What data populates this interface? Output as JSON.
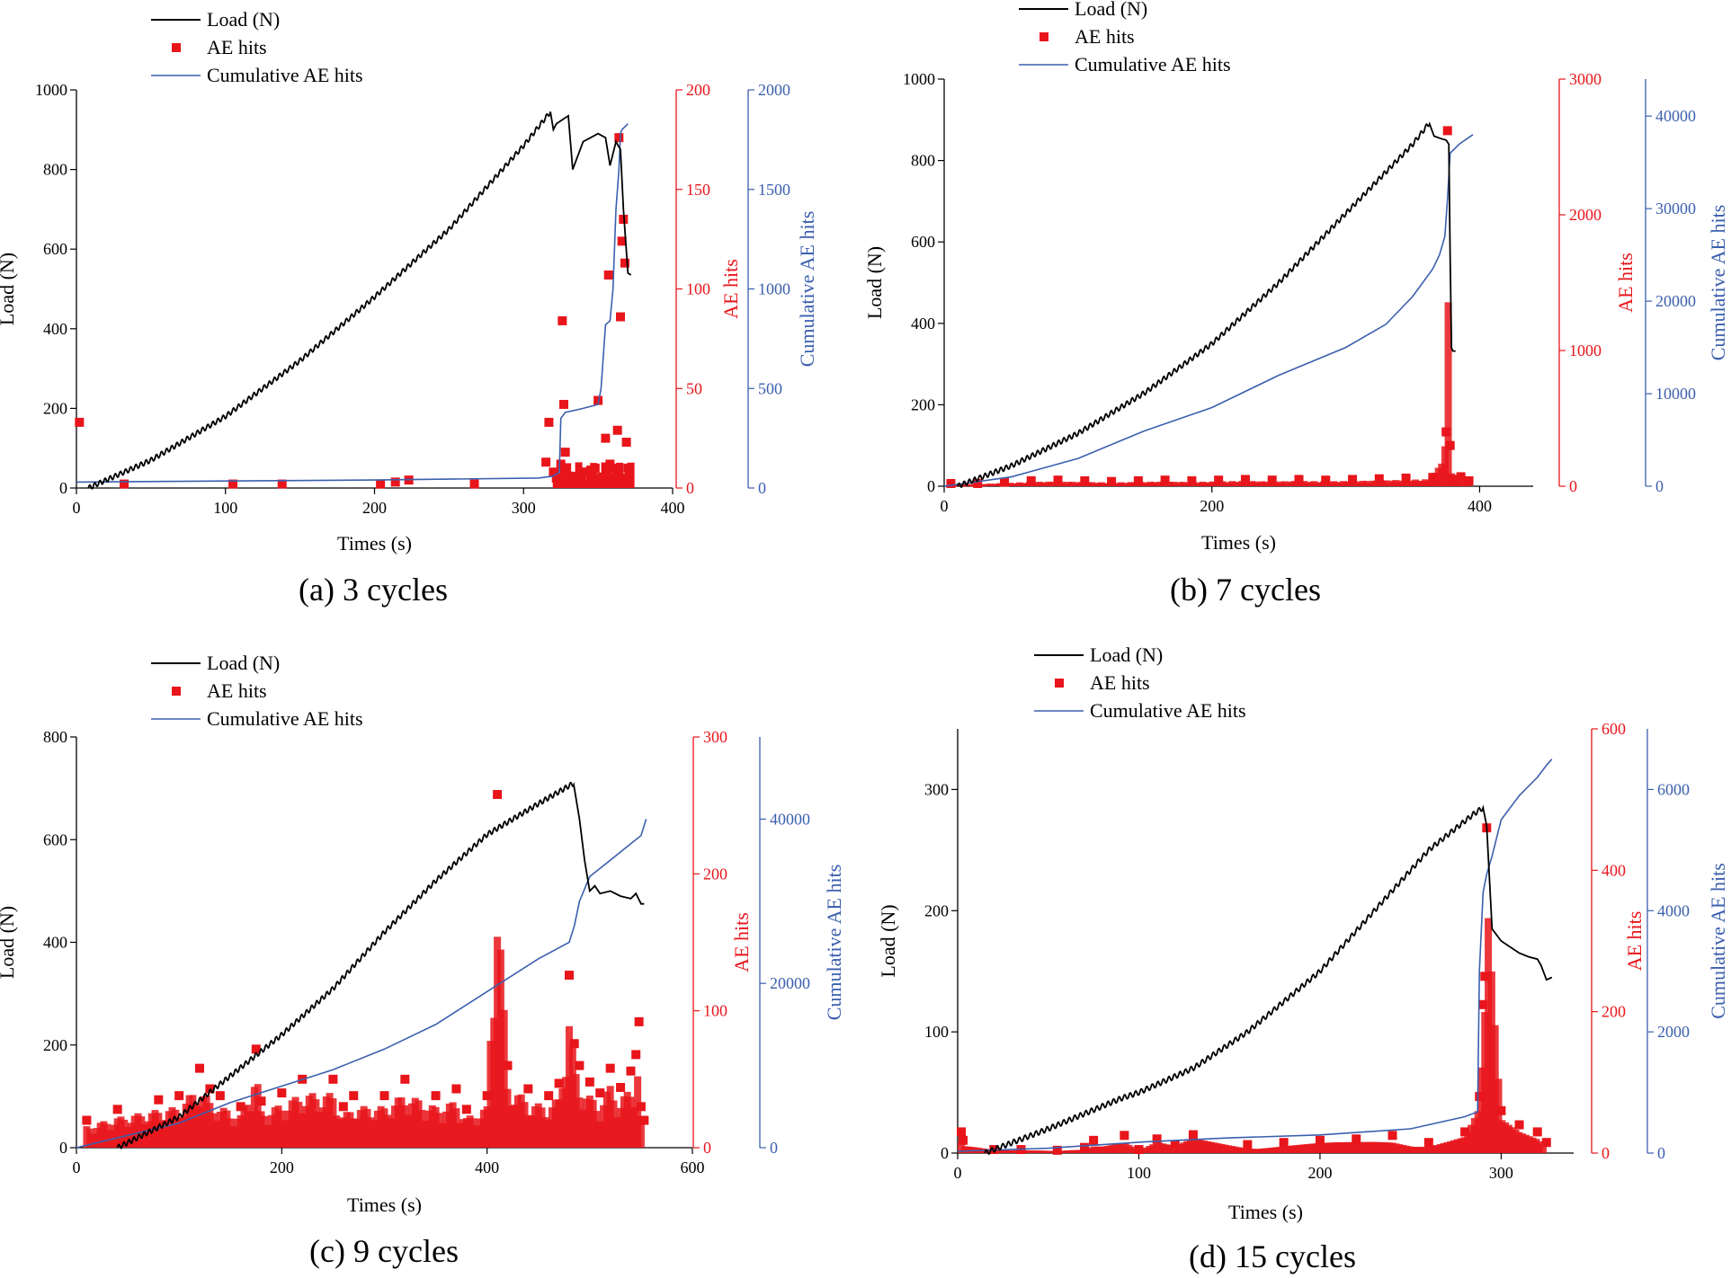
{
  "chart_data": [
    {
      "type": "line",
      "caption": "(a) 3 cycles",
      "xlabel": "Times (s)",
      "xlim": [
        0,
        400
      ],
      "xticks": [
        0,
        100,
        200,
        300,
        400
      ],
      "legend": [
        "Load (N)",
        "AE hits",
        "Cumulative AE hits"
      ],
      "legend_position": "top-left",
      "load_axis": {
        "label": "Load (N)",
        "lim": [
          0,
          1000
        ],
        "ticks": [
          0,
          200,
          400,
          600,
          800,
          1000
        ]
      },
      "ae_axis": {
        "label": "AE hits",
        "lim": [
          0,
          200
        ],
        "ticks": [
          0,
          50,
          100,
          150,
          200
        ],
        "color": "#e8151b"
      },
      "cum_axis": {
        "label": "Cumulative AE hits",
        "lim": [
          0,
          2000
        ],
        "ticks": [
          0,
          500,
          1000,
          1500,
          2000
        ],
        "color": "#3b5fae"
      },
      "load_series": {
        "name": "Load (N)",
        "cycles": 3,
        "x": [
          8,
          50,
          100,
          150,
          200,
          250,
          300,
          318,
          320,
          322,
          330,
          333,
          340,
          350,
          355,
          358,
          362,
          365,
          367,
          370,
          372
        ],
        "y": [
          0,
          70,
          180,
          320,
          480,
          650,
          860,
          945,
          900,
          915,
          935,
          800,
          870,
          890,
          880,
          810,
          870,
          850,
          700,
          540,
          535
        ]
      },
      "ae_series": {
        "name": "AE hits",
        "x": [
          2,
          32,
          105,
          138,
          204,
          214,
          223,
          267,
          315,
          317,
          320,
          322,
          325,
          326,
          327,
          328,
          330,
          333,
          340,
          345,
          348,
          350,
          352,
          355,
          357,
          358,
          360,
          362,
          363,
          364,
          365,
          366,
          367,
          368,
          369,
          370,
          371
        ],
        "y": [
          33,
          2,
          2,
          2,
          2,
          3,
          4,
          2,
          13,
          33,
          8,
          5,
          12,
          84,
          42,
          18,
          6,
          3,
          8,
          4,
          10,
          44,
          3,
          25,
          107,
          12,
          5,
          10,
          29,
          176,
          86,
          124,
          135,
          113,
          23,
          10,
          6
        ]
      },
      "cum_series": {
        "name": "Cumulative AE hits",
        "x": [
          0,
          100,
          200,
          310,
          320,
          324,
          325,
          328,
          340,
          350,
          352,
          355,
          358,
          360,
          362,
          364,
          365,
          366,
          370
        ],
        "y": [
          30,
          35,
          40,
          50,
          60,
          80,
          350,
          380,
          400,
          420,
          500,
          820,
          840,
          1000,
          1400,
          1600,
          1780,
          1800,
          1830
        ]
      }
    },
    {
      "type": "line",
      "caption": "(b) 7 cycles",
      "xlabel": "Times (s)",
      "xlim": [
        0,
        440
      ],
      "xticks": [
        0,
        200,
        400
      ],
      "legend": [
        "Load (N)",
        "AE hits",
        "Cumulative AE hits"
      ],
      "legend_position": "top-left",
      "load_axis": {
        "label": "Load (N)",
        "lim": [
          0,
          1000
        ],
        "ticks": [
          0,
          200,
          400,
          600,
          800,
          1000
        ]
      },
      "ae_axis": {
        "label": "AE hits",
        "lim": [
          0,
          3000
        ],
        "ticks": [
          0,
          1000,
          2000,
          3000
        ],
        "color": "#e8151b"
      },
      "cum_axis": {
        "label": "Cumulative AE hits",
        "lim": [
          0,
          44000
        ],
        "ticks": [
          0,
          10000,
          20000,
          30000,
          40000
        ],
        "color": "#3b5fae"
      },
      "load_series": {
        "name": "Load (N)",
        "cycles": 7,
        "x": [
          10,
          50,
          100,
          150,
          200,
          250,
          300,
          350,
          363,
          366,
          370,
          375,
          377,
          378,
          379,
          380,
          382
        ],
        "y": [
          0,
          50,
          130,
          230,
          350,
          500,
          670,
          840,
          895,
          860,
          855,
          850,
          840,
          560,
          340,
          332,
          332
        ]
      },
      "ae_series": {
        "name": "AE hits",
        "x": [
          5,
          25,
          45,
          65,
          85,
          105,
          125,
          145,
          165,
          185,
          205,
          225,
          245,
          265,
          285,
          305,
          325,
          345,
          365,
          375,
          376,
          378,
          380,
          386,
          392
        ],
        "y": [
          20,
          20,
          30,
          40,
          45,
          40,
          35,
          40,
          45,
          40,
          45,
          50,
          45,
          50,
          45,
          50,
          55,
          60,
          65,
          400,
          2620,
          300,
          50,
          70,
          40
        ]
      },
      "cum_series": {
        "name": "Cumulative AE hits",
        "x": [
          0,
          50,
          100,
          150,
          200,
          250,
          300,
          330,
          350,
          365,
          370,
          374,
          376,
          378,
          385,
          395
        ],
        "y": [
          0,
          1000,
          3000,
          6000,
          8500,
          12000,
          15000,
          17500,
          20500,
          23500,
          25000,
          27000,
          31000,
          36000,
          37000,
          38000
        ]
      }
    },
    {
      "type": "line",
      "caption": "(c) 9 cycles",
      "xlabel": "Times (s)",
      "xlim": [
        0,
        600
      ],
      "xticks": [
        0,
        200,
        400,
        600
      ],
      "legend": [
        "Load (N)",
        "AE hits",
        "Cumulative AE hits"
      ],
      "legend_position": "top-left",
      "load_axis": {
        "label": "Load (N)",
        "lim": [
          0,
          800
        ],
        "ticks": [
          0,
          200,
          400,
          600,
          800
        ]
      },
      "ae_axis": {
        "label": "AE hits",
        "lim": [
          0,
          300
        ],
        "ticks": [
          0,
          100,
          200,
          300
        ],
        "color": "#e8151b"
      },
      "cum_axis": {
        "label": "Cumulative AE hits",
        "lim": [
          0,
          50000
        ],
        "ticks": [
          0,
          20000,
          40000
        ],
        "color": "#3b5fae"
      },
      "load_series": {
        "name": "Load (N)",
        "cycles": 9,
        "x": [
          40,
          100,
          150,
          200,
          250,
          300,
          350,
          400,
          450,
          480,
          485,
          490,
          495,
          500,
          505,
          510,
          520,
          530,
          540,
          545,
          550,
          553
        ],
        "y": [
          0,
          60,
          140,
          220,
          310,
          420,
          520,
          610,
          670,
          705,
          710,
          640,
          560,
          500,
          510,
          495,
          500,
          490,
          485,
          495,
          475,
          475
        ]
      },
      "ae_series": {
        "name": "AE hits",
        "x": [
          10,
          40,
          80,
          100,
          120,
          130,
          140,
          160,
          175,
          180,
          200,
          220,
          250,
          260,
          270,
          300,
          320,
          350,
          370,
          380,
          400,
          410,
          420,
          440,
          460,
          470,
          480,
          485,
          490,
          500,
          510,
          520,
          530,
          540,
          545,
          548,
          550,
          553
        ],
        "y": [
          20,
          28,
          35,
          38,
          58,
          43,
          38,
          30,
          72,
          34,
          40,
          50,
          50,
          30,
          38,
          38,
          50,
          38,
          43,
          28,
          38,
          258,
          60,
          43,
          38,
          47,
          126,
          76,
          60,
          48,
          40,
          58,
          44,
          56,
          68,
          92,
          30,
          20
        ]
      },
      "cum_series": {
        "name": "Cumulative AE hits",
        "x": [
          0,
          100,
          150,
          200,
          250,
          300,
          350,
          400,
          450,
          480,
          485,
          490,
          500,
          520,
          540,
          550,
          555
        ],
        "y": [
          0,
          3000,
          5500,
          7500,
          9500,
          12000,
          15000,
          19000,
          23000,
          25000,
          27000,
          30000,
          33000,
          35000,
          37000,
          38000,
          40000
        ]
      }
    },
    {
      "type": "line",
      "caption": "(d) 15 cycles",
      "xlabel": "Times (s)",
      "xlim": [
        0,
        340
      ],
      "xticks": [
        0,
        100,
        200,
        300
      ],
      "legend": [
        "Load (N)",
        "AE hits",
        "Cumulative AE hits"
      ],
      "legend_position": "top-left",
      "load_axis": {
        "label": "Load (N)",
        "lim": [
          0,
          350
        ],
        "ticks": [
          0,
          100,
          200,
          300
        ]
      },
      "ae_axis": {
        "label": "AE hits",
        "lim": [
          0,
          600
        ],
        "ticks": [
          0,
          200,
          400,
          600
        ],
        "color": "#e8151b"
      },
      "cum_axis": {
        "label": "Cumulative AE hits",
        "lim": [
          0,
          7000
        ],
        "ticks": [
          0,
          2000,
          4000,
          6000
        ],
        "color": "#3b5fae"
      },
      "load_series": {
        "name": "Load (N)",
        "cycles": 15,
        "x": [
          15,
          50,
          90,
          100,
          130,
          160,
          200,
          230,
          260,
          285,
          290,
          292,
          295,
          300,
          305,
          310,
          315,
          320,
          322,
          325,
          328
        ],
        "y": [
          0,
          20,
          45,
          50,
          70,
          100,
          150,
          200,
          250,
          280,
          285,
          270,
          185,
          175,
          170,
          165,
          162,
          160,
          155,
          143,
          145
        ]
      },
      "ae_series": {
        "name": "AE hits",
        "x": [
          2,
          3,
          20,
          35,
          55,
          70,
          75,
          92,
          100,
          110,
          120,
          130,
          160,
          180,
          200,
          220,
          240,
          260,
          280,
          288,
          290,
          291,
          292,
          300,
          310,
          320,
          325
        ],
        "y": [
          30,
          18,
          5,
          5,
          4,
          8,
          18,
          25,
          5,
          20,
          12,
          26,
          12,
          15,
          18,
          20,
          25,
          15,
          30,
          80,
          210,
          250,
          460,
          60,
          40,
          30,
          15
        ]
      },
      "cum_series": {
        "name": "Cumulative AE hits",
        "x": [
          0,
          50,
          100,
          150,
          200,
          250,
          280,
          287,
          288,
          290,
          292,
          295,
          300,
          310,
          320,
          325,
          328
        ],
        "y": [
          30,
          80,
          180,
          250,
          300,
          400,
          600,
          680,
          3000,
          4300,
          4600,
          4900,
          5500,
          5900,
          6200,
          6400,
          6500
        ]
      }
    }
  ]
}
